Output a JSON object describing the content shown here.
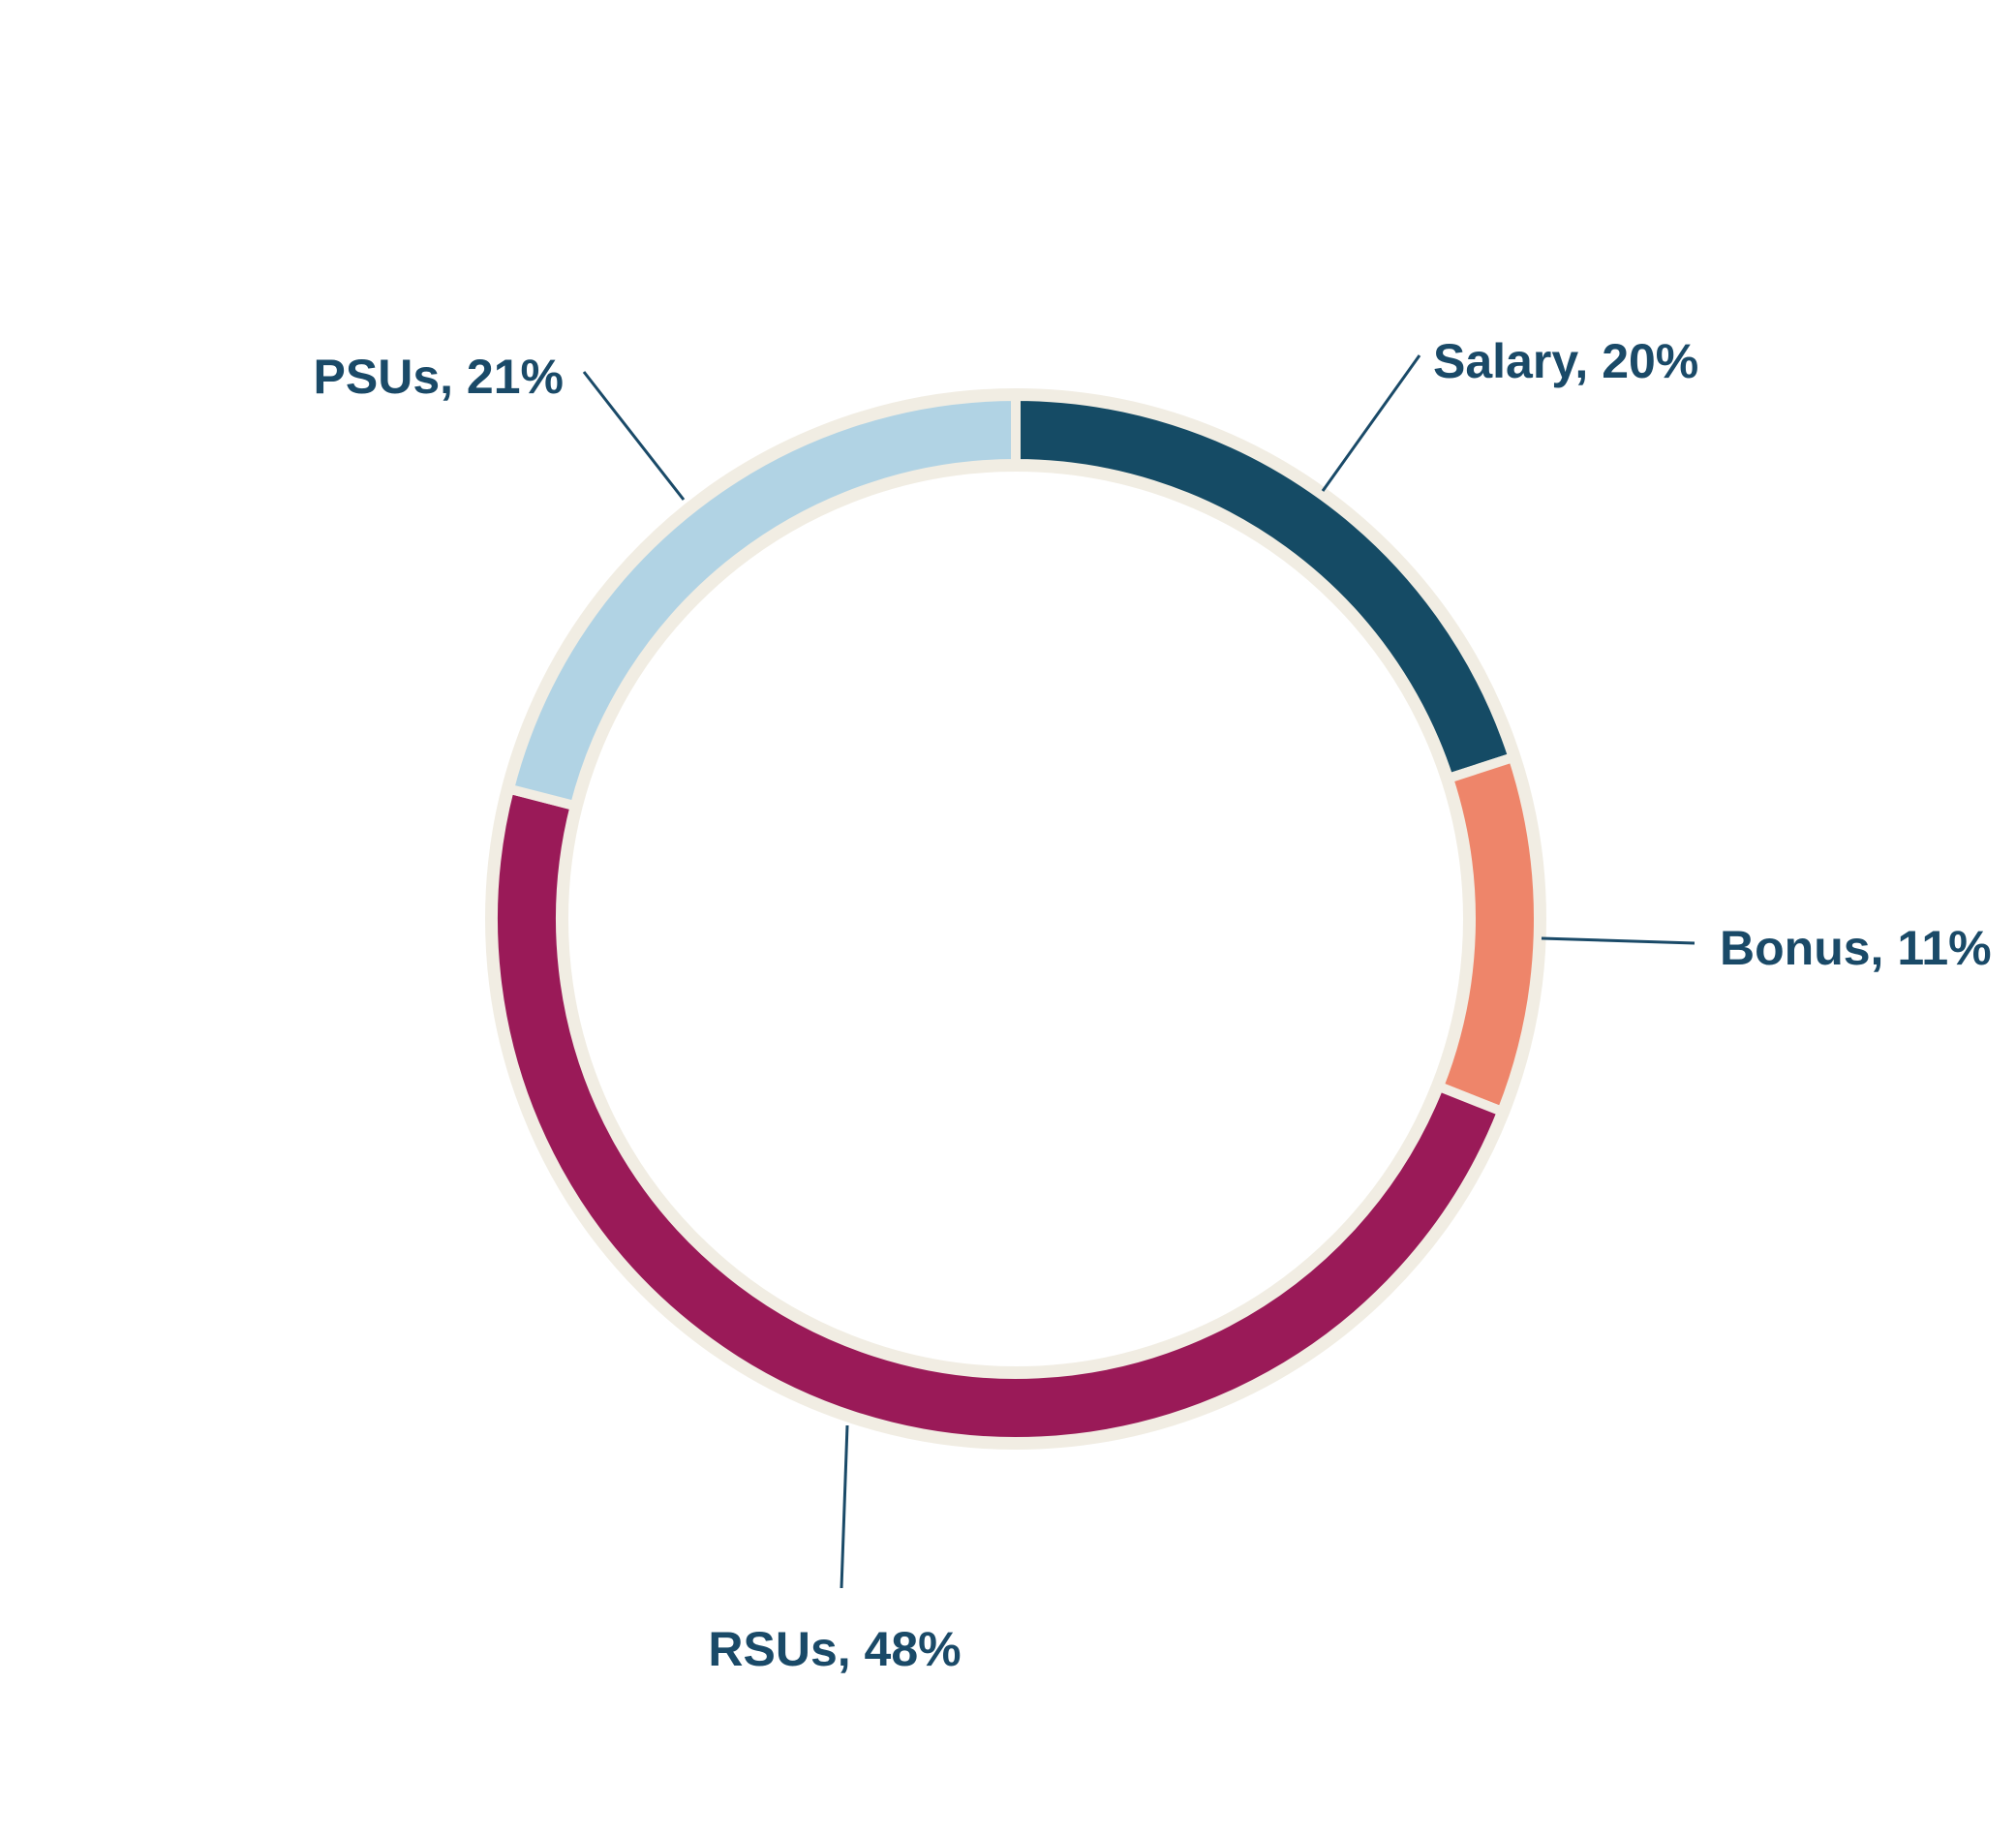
{
  "chart_data": {
    "type": "pie",
    "title": "",
    "donut": true,
    "start": "12 o'clock, clockwise",
    "slices": [
      {
        "name": "Salary",
        "value": 20,
        "color": "#154B65",
        "label": "Salary, 20%"
      },
      {
        "name": "Bonus",
        "value": 11,
        "color": "#EE856A",
        "label": "Bonus, 11%"
      },
      {
        "name": "RSUs",
        "value": 48,
        "color": "#9A1A58",
        "label": "RSUs, 48%"
      },
      {
        "name": "PSUs",
        "value": 21,
        "color": "#B1D3E4",
        "label": "PSUs, 21%"
      }
    ],
    "separator_color": "#F1EDE3",
    "label_color": "#1A4A68"
  }
}
